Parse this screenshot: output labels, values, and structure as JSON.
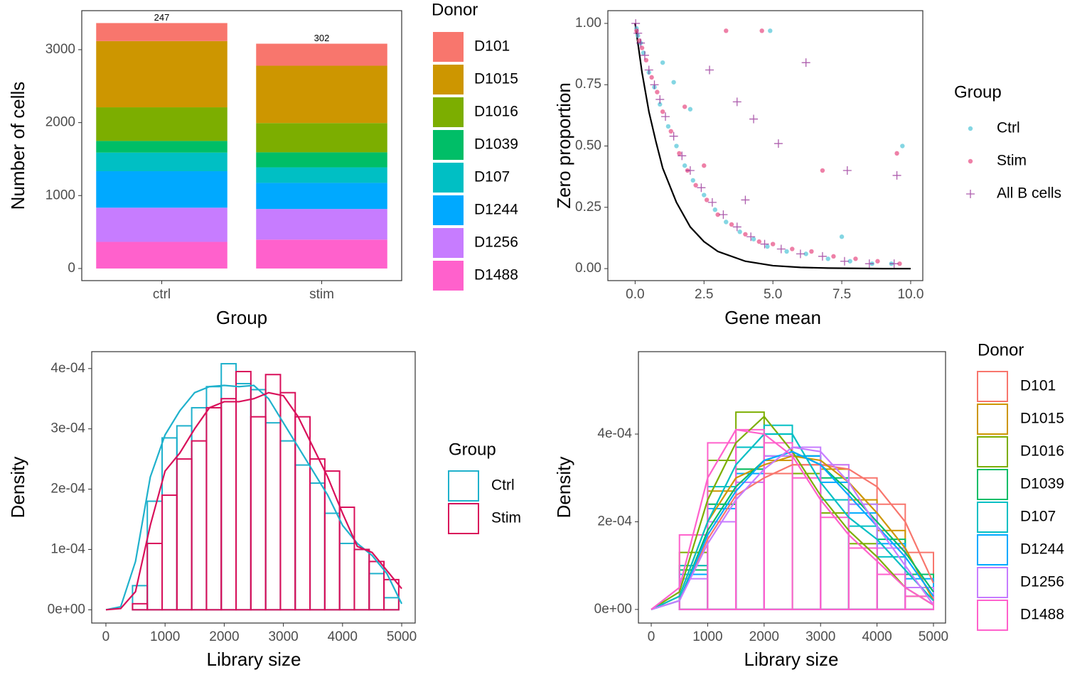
{
  "chart_data": [
    {
      "type": "bar",
      "stacked": true,
      "xlabel": "Group",
      "ylabel": "Number of cells",
      "legend_title": "Donor",
      "categories": [
        "ctrl",
        "stim"
      ],
      "ylim": [
        -166,
        3535
      ],
      "yticks": [
        0,
        1000,
        2000,
        3000
      ],
      "series": [
        {
          "name": "D101",
          "color": "#F8766D",
          "values": [
            247,
            302
          ]
        },
        {
          "name": "D1015",
          "color": "#CD9600",
          "values": [
            908,
            786
          ]
        },
        {
          "name": "D1016",
          "color": "#7CAE00",
          "values": [
            461,
            401
          ]
        },
        {
          "name": "D1039",
          "color": "#00BE67",
          "values": [
            160,
            206
          ]
        },
        {
          "name": "D107",
          "color": "#00BFC4",
          "values": [
            255,
            213
          ]
        },
        {
          "name": "D1244",
          "color": "#00A9FF",
          "values": [
            500,
            358
          ]
        },
        {
          "name": "D1256",
          "color": "#C77CFF",
          "values": [
            469,
            420
          ]
        },
        {
          "name": "D1488",
          "color": "#FF61CC",
          "values": [
            365,
            396
          ]
        }
      ]
    },
    {
      "type": "scatter",
      "xlabel": "Gene mean",
      "ylabel": "Zero proportion",
      "legend_title": "Group",
      "xlim": [
        -0.99,
        10.44
      ],
      "ylim": [
        -0.049,
        1.052
      ],
      "xticks": [
        {
          "value": 0,
          "label": "0.0"
        },
        {
          "value": 2.5,
          "label": "2.5"
        },
        {
          "value": 5,
          "label": "5.0"
        },
        {
          "value": 7.5,
          "label": "7.5"
        },
        {
          "value": 10,
          "label": "10.0"
        }
      ],
      "yticks": [
        {
          "value": 0,
          "label": "0.00"
        },
        {
          "value": 0.25,
          "label": "0.25"
        },
        {
          "value": 0.5,
          "label": "0.50"
        },
        {
          "value": 0.75,
          "label": "0.75"
        },
        {
          "value": 1,
          "label": "1.00"
        }
      ],
      "series": [
        {
          "name": "Ctrl",
          "color": "#5BC8D9",
          "shape": "circle",
          "x": [
            0.05,
            0.1,
            0.2,
            0.3,
            0.5,
            0.7,
            0.9,
            1.2,
            1.5,
            1.8,
            2.1,
            2.5,
            2.9,
            3.3,
            3.8,
            4.3,
            4.8,
            5.5,
            6.2,
            7.0,
            7.8,
            8.6,
            9.3,
            9.7,
            1.0,
            1.4,
            2.0,
            4.9,
            7.5
          ],
          "values": [
            0.98,
            0.95,
            0.92,
            0.88,
            0.8,
            0.74,
            0.67,
            0.58,
            0.5,
            0.42,
            0.36,
            0.3,
            0.24,
            0.19,
            0.15,
            0.12,
            0.09,
            0.07,
            0.06,
            0.04,
            0.03,
            0.02,
            0.02,
            0.5,
            0.84,
            0.76,
            0.65,
            0.97,
            0.13
          ]
        },
        {
          "name": "Stim",
          "color": "#E8558A",
          "shape": "circle",
          "x": [
            0.05,
            0.15,
            0.25,
            0.4,
            0.6,
            0.8,
            1.0,
            1.3,
            1.6,
            1.9,
            2.2,
            2.6,
            3.0,
            3.5,
            4.0,
            4.5,
            5.0,
            5.7,
            6.4,
            7.2,
            8.0,
            8.8,
            9.6,
            1.8,
            3.3,
            4.6,
            6.8,
            9.5,
            2.5
          ],
          "values": [
            0.97,
            0.93,
            0.9,
            0.85,
            0.78,
            0.72,
            0.64,
            0.56,
            0.47,
            0.4,
            0.34,
            0.28,
            0.22,
            0.18,
            0.14,
            0.11,
            0.1,
            0.08,
            0.07,
            0.05,
            0.04,
            0.03,
            0.02,
            0.66,
            0.97,
            0.97,
            0.4,
            0.47,
            0.42
          ]
        },
        {
          "name": "All B cells",
          "color": "#8B1A8B",
          "shape": "plus",
          "x": [
            0.02,
            0.1,
            0.2,
            0.35,
            0.5,
            0.7,
            0.9,
            1.1,
            1.4,
            1.7,
            2.0,
            2.4,
            2.8,
            3.2,
            3.7,
            4.2,
            4.7,
            5.3,
            6.0,
            6.8,
            7.6,
            8.5,
            9.4,
            2.7,
            3.7,
            4.3,
            5.2,
            6.2,
            7.7,
            9.5,
            4.0
          ],
          "values": [
            1.0,
            0.96,
            0.92,
            0.87,
            0.81,
            0.75,
            0.69,
            0.62,
            0.54,
            0.46,
            0.4,
            0.33,
            0.27,
            0.22,
            0.17,
            0.13,
            0.1,
            0.08,
            0.06,
            0.05,
            0.03,
            0.02,
            0.02,
            0.81,
            0.68,
            0.61,
            0.51,
            0.84,
            0.4,
            0.38,
            0.28
          ]
        }
      ],
      "curve": {
        "color": "#000000",
        "x": [
          0,
          0.25,
          0.5,
          0.75,
          1,
          1.5,
          2,
          2.5,
          3,
          4,
          5,
          6,
          7,
          8,
          9,
          10
        ],
        "values": [
          1,
          0.8,
          0.64,
          0.52,
          0.41,
          0.27,
          0.17,
          0.11,
          0.07,
          0.03,
          0.012,
          0.005,
          0.002,
          0.001,
          0,
          0
        ]
      }
    },
    {
      "type": "histogram",
      "xlabel": "Library size",
      "ylabel": "Density",
      "legend_title": "Group",
      "xlim": [
        -240,
        5228
      ],
      "ylim": [
        -2.2e-05,
        0.000428
      ],
      "xticks": [
        0,
        1000,
        2000,
        3000,
        4000,
        5000
      ],
      "yticks": [
        {
          "value": 0,
          "label": "0e+00"
        },
        {
          "value": 0.0001,
          "label": "1e-04"
        },
        {
          "value": 0.0002,
          "label": "2e-04"
        },
        {
          "value": 0.0003,
          "label": "3e-04"
        },
        {
          "value": 0.0004,
          "label": "4e-04"
        }
      ],
      "bins": [
        450,
        700,
        950,
        1200,
        1450,
        1700,
        1950,
        2200,
        2450,
        2700,
        2950,
        3200,
        3450,
        3700,
        3950,
        4200,
        4450,
        4700,
        4950
      ],
      "curve_x": [
        0,
        250,
        500,
        750,
        1000,
        1250,
        1500,
        1750,
        2000,
        2250,
        2500,
        2750,
        3000,
        3250,
        3500,
        3750,
        4000,
        4250,
        4500,
        4750,
        5000
      ],
      "series": [
        {
          "name": "Ctrl",
          "color": "#1FB1CC",
          "values": [
            4e-05,
            0.00018,
            0.000285,
            0.000305,
            0.000335,
            0.00037,
            0.000408,
            0.000375,
            0.000365,
            0.00031,
            0.00028,
            0.00024,
            0.00021,
            0.00016,
            0.00011,
            0.0001,
            6e-05,
            2e-05
          ],
          "curve": [
            0,
            5e-06,
            8e-05,
            0.00022,
            0.00029,
            0.00033,
            0.00036,
            0.00037,
            0.000372,
            0.00037,
            0.000372,
            0.00035,
            0.00031,
            0.00027,
            0.00023,
            0.00019,
            0.00014,
            0.00011,
            9e-05,
            6e-05,
            1e-05
          ]
        },
        {
          "name": "Stim",
          "color": "#D9105A",
          "values": [
            1e-05,
            0.00011,
            0.00019,
            0.00025,
            0.00028,
            0.000335,
            0.00035,
            0.000395,
            0.00032,
            0.00039,
            0.00036,
            0.00032,
            0.00025,
            0.00023,
            0.00017,
            0.0001,
            8e-05,
            5e-05
          ],
          "curve": [
            0,
            2e-06,
            3e-05,
            0.00014,
            0.00023,
            0.00026,
            0.0003,
            0.000335,
            0.000345,
            0.000345,
            0.00035,
            0.00036,
            0.000355,
            0.00032,
            0.00027,
            0.00022,
            0.00016,
            0.000105,
            9.5e-05,
            6.5e-05,
            3.5e-05
          ]
        }
      ]
    },
    {
      "type": "histogram",
      "xlabel": "Library size",
      "ylabel": "Density",
      "legend_title": "Donor",
      "xlim": [
        -227,
        5214
      ],
      "ylim": [
        -3.1e-05,
        0.000588
      ],
      "xticks": [
        0,
        1000,
        2000,
        3000,
        4000,
        5000
      ],
      "yticks": [
        {
          "value": 0,
          "label": "0e+00"
        },
        {
          "value": 0.0002,
          "label": "2e-04"
        },
        {
          "value": 0.0004,
          "label": "4e-04"
        }
      ],
      "bins": [
        500,
        1000,
        1500,
        2000,
        2500,
        3000,
        3500,
        4000,
        4500,
        5000
      ],
      "curve_x": [
        0,
        500,
        1000,
        1500,
        2000,
        2500,
        3000,
        3500,
        4000,
        4500,
        5000
      ],
      "series": [
        {
          "name": "D101",
          "color": "#F8766D",
          "values": [
            8e-05,
            0.00024,
            0.00029,
            0.00031,
            0.00033,
            0.00033,
            0.0003,
            0.00024,
            0.00013
          ],
          "curve": [
            0,
            2e-05,
            0.00016,
            0.00026,
            0.0003,
            0.00033,
            0.00033,
            0.00032,
            0.00028,
            0.0002,
            6e-05
          ]
        },
        {
          "name": "D1015",
          "color": "#CD9600",
          "values": [
            0.0001,
            0.00027,
            0.00032,
            0.00034,
            0.00035,
            0.00032,
            0.00025,
            0.00018,
            8e-05
          ],
          "curve": [
            0,
            3e-05,
            0.0002,
            0.0003,
            0.00033,
            0.00035,
            0.00034,
            0.00029,
            0.00022,
            0.00014,
            2e-05
          ]
        },
        {
          "name": "D1016",
          "color": "#7CAE00",
          "values": [
            0.00013,
            0.00034,
            0.00045,
            0.0004,
            0.00031,
            0.00022,
            0.00015,
            8e-05,
            3e-05
          ],
          "curve": [
            0,
            4e-05,
            0.00025,
            0.00038,
            0.00044,
            0.00036,
            0.00026,
            0.00018,
            0.00012,
            5e-05,
            1e-05
          ]
        },
        {
          "name": "D1039",
          "color": "#00BE67",
          "values": [
            9e-05,
            0.00024,
            0.00032,
            0.00035,
            0.00035,
            0.0003,
            0.00024,
            0.00016,
            8e-05
          ],
          "curve": [
            0,
            2e-05,
            0.00018,
            0.00028,
            0.00034,
            0.00036,
            0.00033,
            0.00027,
            0.0002,
            0.00013,
            4e-05
          ]
        },
        {
          "name": "D107",
          "color": "#00BFC4",
          "values": [
            0.0001,
            0.00028,
            0.00037,
            0.00042,
            0.00035,
            0.00025,
            0.00019,
            0.00012,
            5e-05
          ],
          "curve": [
            0,
            3e-05,
            0.0002,
            0.00033,
            0.0004,
            0.0004,
            0.00029,
            0.00021,
            0.00016,
            9e-05,
            2e-05
          ]
        },
        {
          "name": "D1244",
          "color": "#00A9FF",
          "values": [
            8e-05,
            0.00023,
            0.00031,
            0.00035,
            0.00035,
            0.00029,
            0.00022,
            0.00015,
            7e-05
          ],
          "curve": [
            0,
            2e-05,
            0.00017,
            0.00027,
            0.00034,
            0.00036,
            0.00033,
            0.00026,
            0.00019,
            0.00012,
            3e-05
          ]
        },
        {
          "name": "D1256",
          "color": "#C77CFF",
          "values": [
            7e-05,
            0.0002,
            0.00029,
            0.00035,
            0.00037,
            0.00033,
            0.00024,
            0.00014,
            5e-05
          ],
          "curve": [
            0,
            2e-05,
            0.00015,
            0.00025,
            0.00032,
            0.00037,
            0.00036,
            0.00029,
            0.00019,
            0.0001,
            1e-05
          ]
        },
        {
          "name": "D1488",
          "color": "#FF61CC",
          "values": [
            0.00017,
            0.00038,
            0.00041,
            0.00038,
            0.0003,
            0.00021,
            0.00014,
            8e-05,
            3e-05
          ],
          "curve": [
            0,
            5e-05,
            0.0003,
            0.00041,
            0.0004,
            0.00035,
            0.00025,
            0.00017,
            0.00011,
            5e-05,
            1e-05
          ]
        }
      ]
    }
  ]
}
